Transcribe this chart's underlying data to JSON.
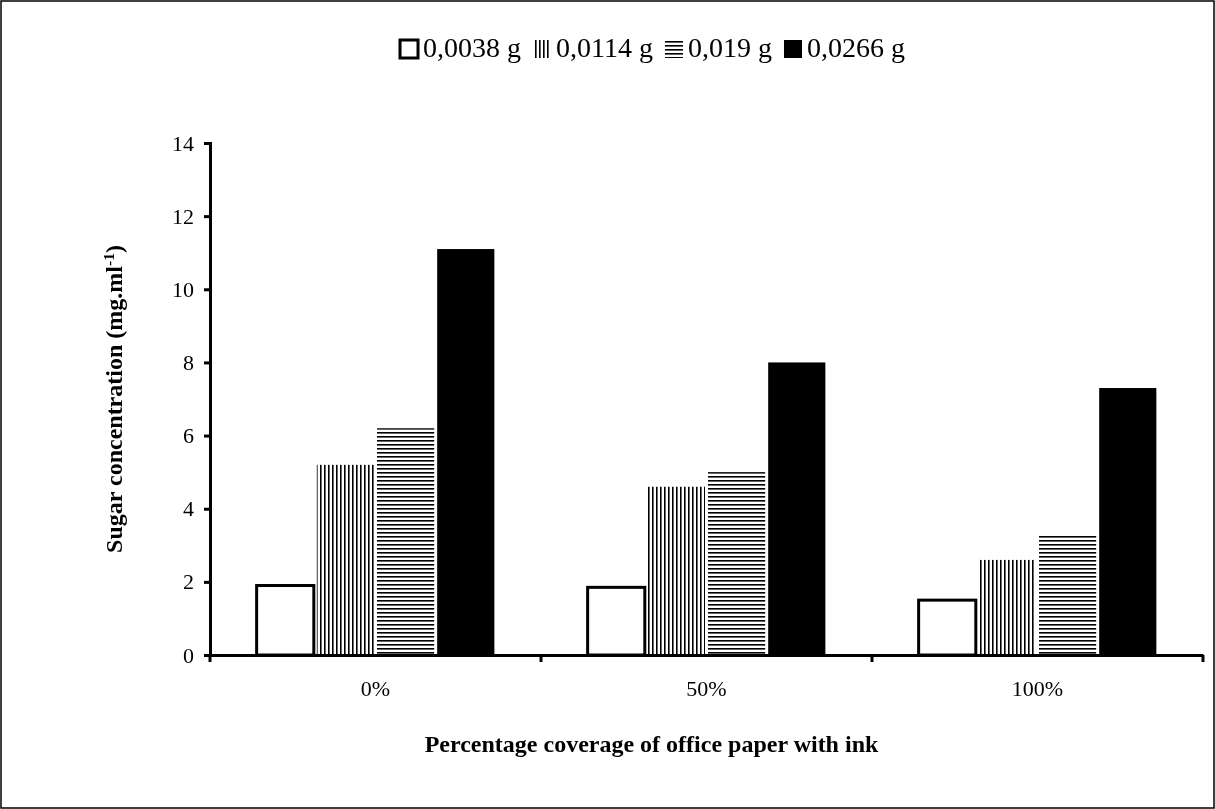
{
  "chart_data": {
    "type": "bar",
    "xlabel": "Percentage coverage of office paper with ink",
    "ylabel": "Sugar concentration (mg.ml$^{-1}$)",
    "categories": [
      "0%",
      "50%",
      "100%"
    ],
    "series": [
      {
        "name": "0,0038 g",
        "color": "#ffffff",
        "values": [
          1.9,
          1.85,
          1.5
        ]
      },
      {
        "name": "0,0114 g",
        "color": "#000000",
        "values": [
          5.2,
          4.6,
          2.6
        ]
      },
      {
        "name": "0,019 g",
        "color": "#000000",
        "values": [
          6.2,
          5.0,
          3.3
        ]
      },
      {
        "name": "0,0266 g",
        "color": "#000000",
        "values": [
          11.1,
          8.0,
          7.3
        ]
      }
    ],
    "ylim": [
      0,
      14
    ],
    "yticks": [
      0,
      2,
      4,
      6,
      8,
      10,
      12,
      14
    ],
    "legend": "top",
    "grid": false
  }
}
